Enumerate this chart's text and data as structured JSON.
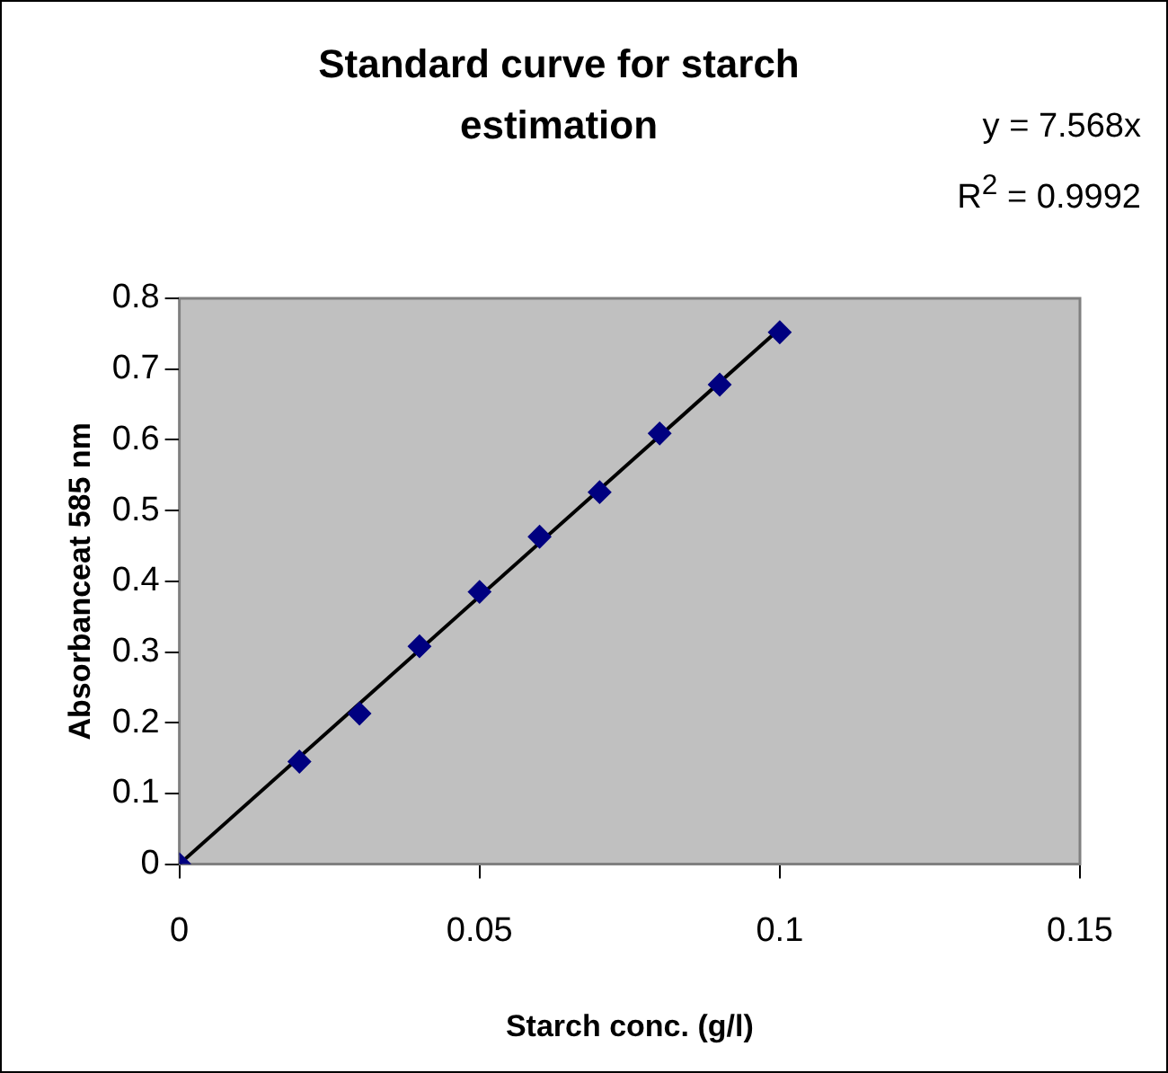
{
  "chart_data": {
    "type": "scatter",
    "title": "Standard curve for starch estimation",
    "xlabel": "Starch conc. (g/l)",
    "ylabel": "Absorbanceat 585 nm",
    "annotations": [
      "y = 7.568x",
      "R$^{2}$ = 0.9992"
    ],
    "series": [
      {
        "color": "#000080",
        "marker": "diamond",
        "x": [
          0,
          0.02,
          0.03,
          0.04,
          0.05,
          0.06,
          0.07,
          0.08,
          0.09,
          0.1
        ],
        "values": [
          0,
          0.145,
          0.213,
          0.308,
          0.385,
          0.463,
          0.526,
          0.609,
          0.678,
          0.752
        ]
      },
      {
        "type": "line",
        "color": "#000000",
        "marker": "none",
        "line_style": "solid",
        "x": [
          0,
          0.1
        ],
        "values": [
          0,
          0.757
        ]
      }
    ],
    "xlim": [
      0,
      0.15
    ],
    "xticks": [
      0,
      0.05,
      0.1,
      0.15
    ],
    "ylim": [
      0,
      0.8
    ],
    "yticks": [
      0,
      0.1,
      0.2,
      0.3,
      0.4,
      0.5,
      0.6,
      0.7,
      0.8
    ],
    "grid": false,
    "legend": false
  }
}
